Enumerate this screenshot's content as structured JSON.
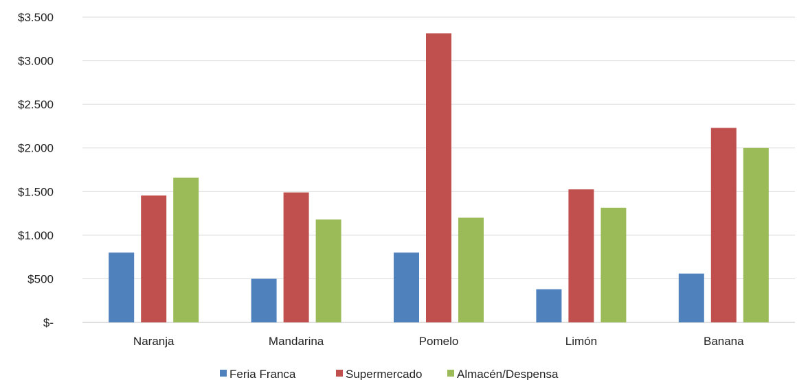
{
  "chart_data": {
    "type": "bar",
    "categories": [
      "Naranja",
      "Mandarina",
      "Pomelo",
      "Limón",
      "Banana"
    ],
    "series": [
      {
        "name": "Feria Franca",
        "color": "#4f81bd",
        "values": [
          800,
          500,
          800,
          380,
          560
        ]
      },
      {
        "name": "Supermercado",
        "color": "#c0504d",
        "values": [
          1455,
          1490,
          3315,
          1525,
          2230
        ]
      },
      {
        "name": "Almacén/Despensa",
        "color": "#9bbb59",
        "values": [
          1660,
          1180,
          1200,
          1315,
          2000
        ]
      }
    ],
    "y_ticks": [
      0,
      500,
      1000,
      1500,
      2000,
      2500,
      3000,
      3500
    ],
    "y_tick_labels": [
      "$-",
      "$500",
      "$1.000",
      "$1.500",
      "$2.000",
      "$2.500",
      "$3.000",
      "$3.500"
    ],
    "ylim": [
      0,
      3500
    ],
    "grid": true,
    "legend_position": "bottom"
  }
}
